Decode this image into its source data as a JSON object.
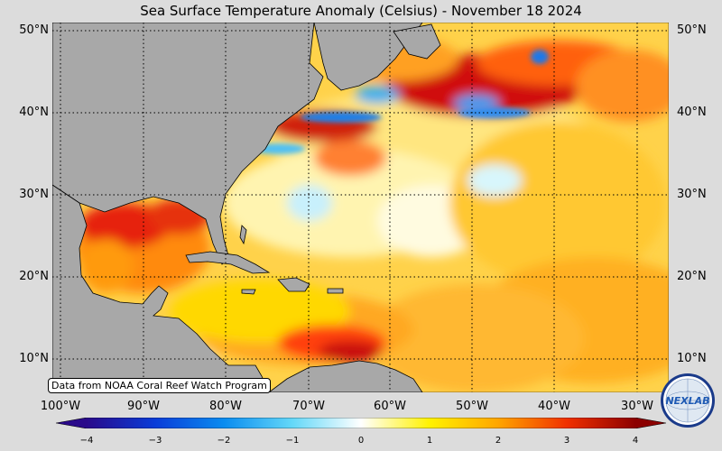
{
  "title": "Sea Surface Temperature Anomaly (Celsius) - November 18 2024",
  "lat_labels": [
    "50°N",
    "40°N",
    "30°N",
    "20°N",
    "10°N"
  ],
  "lon_labels": [
    "100°W",
    "90°W",
    "80°W",
    "70°W",
    "60°W",
    "50°W",
    "40°W",
    "30°W"
  ],
  "credit": "Data from NOAA Coral Reef Watch Program",
  "colorbar": {
    "ticks": [
      "−4",
      "−3",
      "−2",
      "−1",
      "0",
      "1",
      "2",
      "3",
      "4"
    ],
    "colors": [
      "#2a0a8a",
      "#0a3cd8",
      "#0a8cf0",
      "#64d8f8",
      "#ffffff",
      "#fff200",
      "#ffa500",
      "#f03000",
      "#8c0000"
    ]
  },
  "logo": {
    "text": "NEXLAB"
  },
  "colors": {
    "land": "#a8a8a8",
    "background": "#dcdcdc"
  }
}
